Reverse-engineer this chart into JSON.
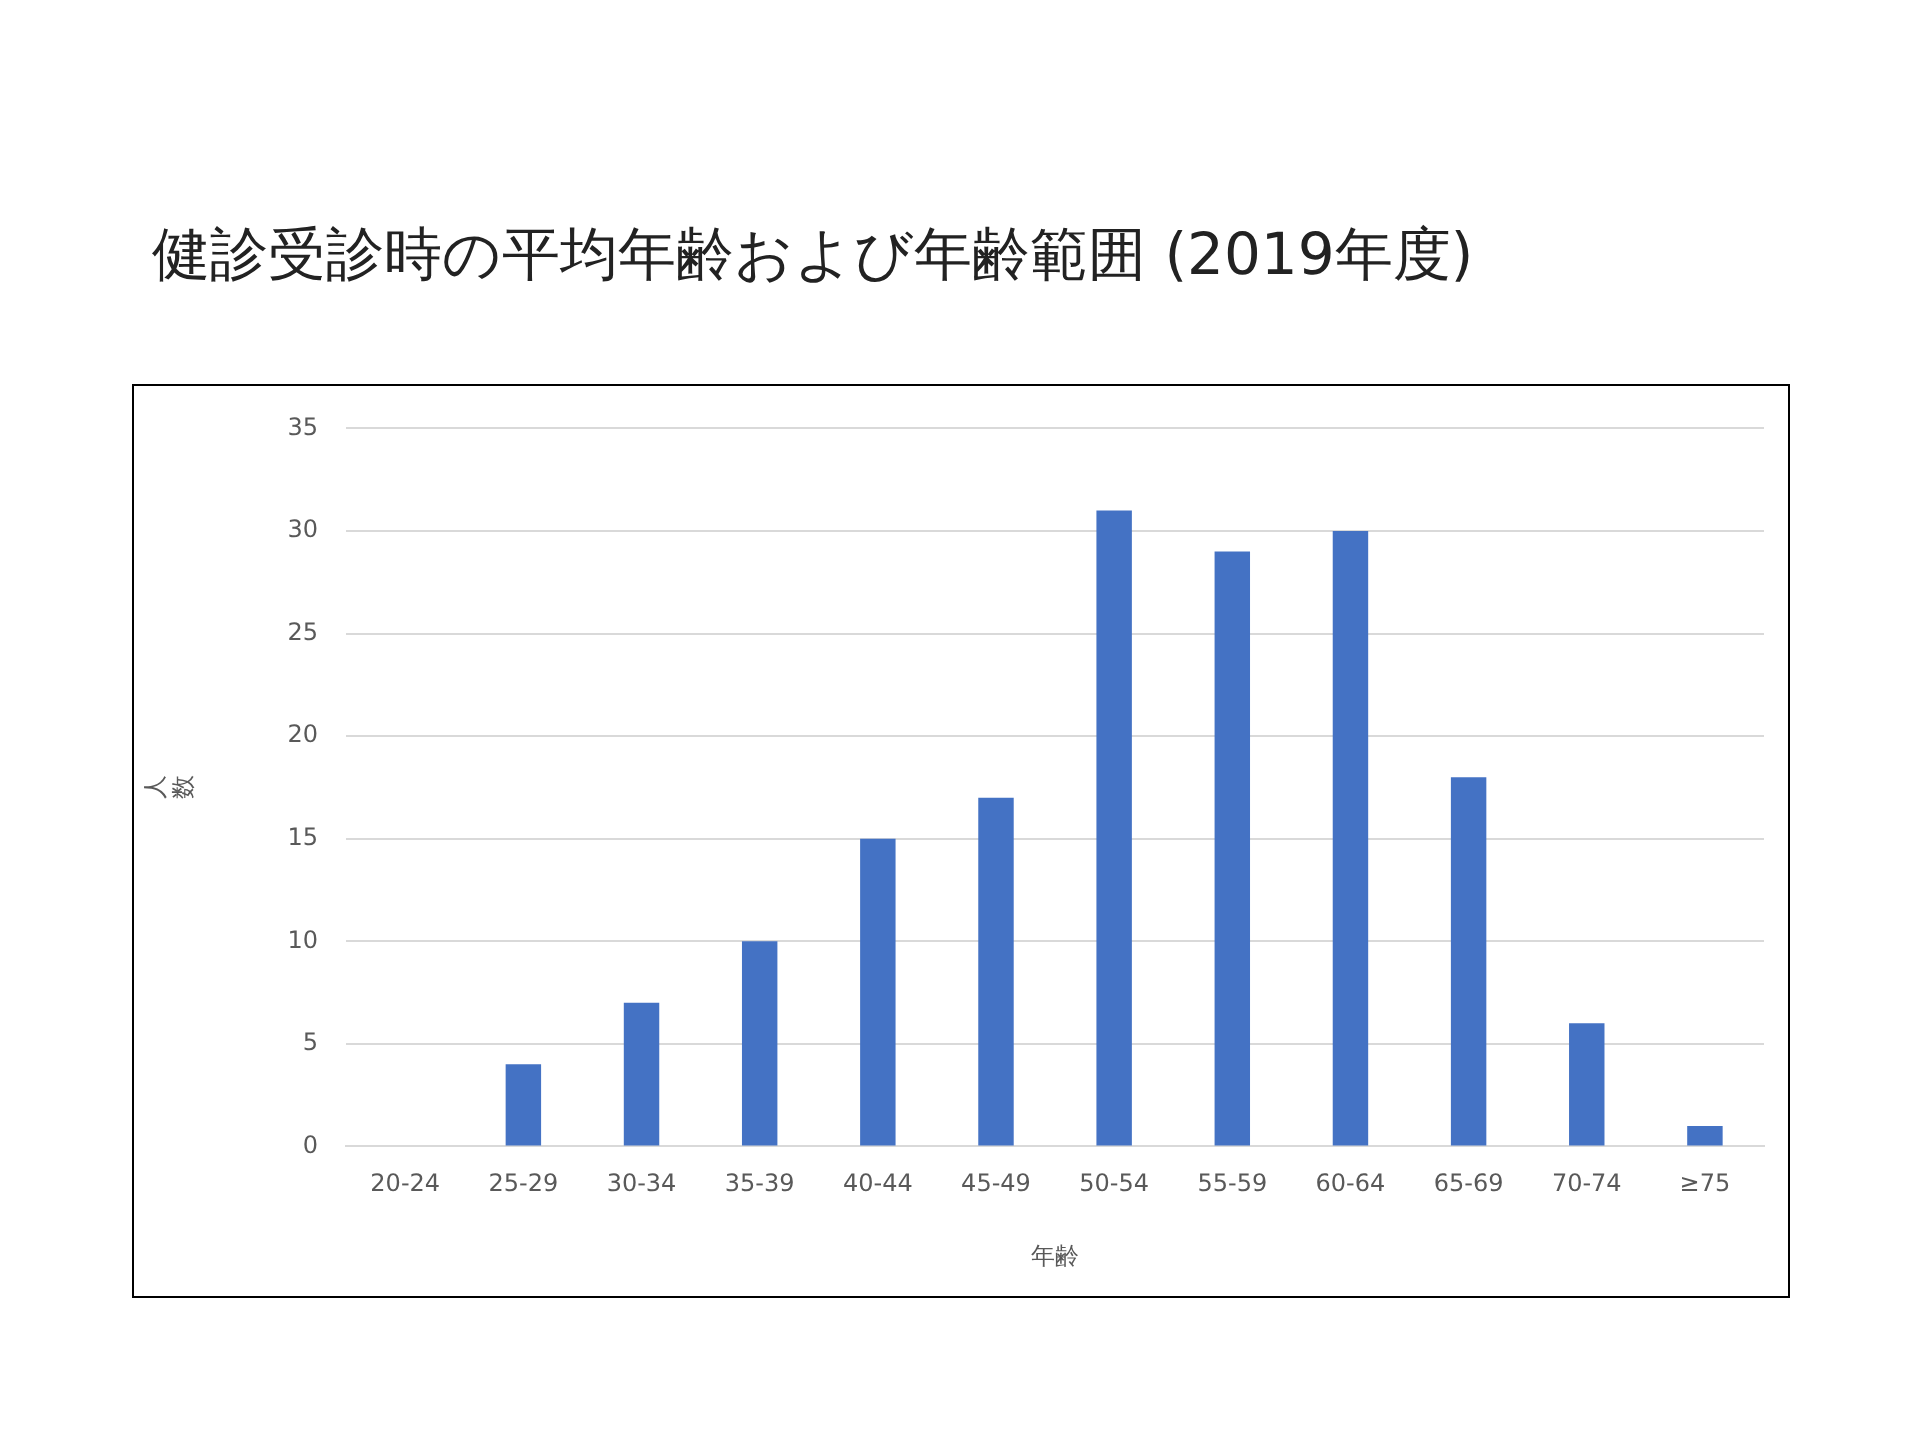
{
  "chart_data": {
    "type": "bar",
    "title": "健診受診時の平均年齢および年齢範囲 (2019年度)",
    "xlabel": "年齢",
    "ylabel": "人数",
    "categories": [
      "20-24",
      "25-29",
      "30-34",
      "35-39",
      "40-44",
      "45-49",
      "50-54",
      "55-59",
      "60-64",
      "65-69",
      "70-74",
      "≥75"
    ],
    "values": [
      0,
      4,
      7,
      10,
      15,
      17,
      31,
      29,
      30,
      18,
      6,
      1
    ],
    "color": "#4472c4",
    "ylim": [
      0,
      35
    ],
    "yticks": [
      0,
      5,
      10,
      15,
      20,
      25,
      30,
      35
    ],
    "grid": "y",
    "legend": false
  }
}
